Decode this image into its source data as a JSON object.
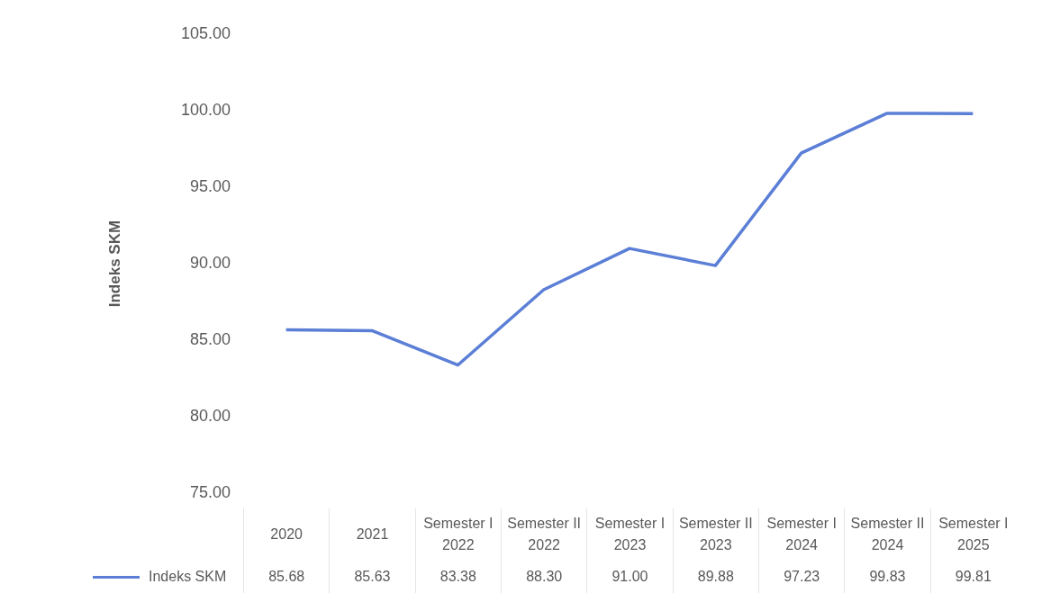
{
  "chart_data": {
    "type": "line",
    "ylabel": "Indeks SKM",
    "categories": [
      "2020",
      "2021",
      "Semester I 2022",
      "Semester II 2022",
      "Semester I 2023",
      "Semester II 2023",
      "Semester I 2024",
      "Semester II 2024",
      "Semester I 2025"
    ],
    "series": [
      {
        "name": "Indeks SKM",
        "color": "#5b7fd6",
        "values": [
          85.68,
          85.63,
          83.38,
          88.3,
          91.0,
          89.88,
          97.23,
          99.83,
          99.81
        ],
        "value_labels": [
          "85.68",
          "85.63",
          "83.38",
          "88.30",
          "91.00",
          "89.88",
          "97.23",
          "99.83",
          "99.81"
        ]
      }
    ],
    "ylim": [
      75,
      105
    ],
    "yticks": [
      {
        "value": 75,
        "label": "75.00"
      },
      {
        "value": 80,
        "label": "80.00"
      },
      {
        "value": 85,
        "label": "85.00"
      },
      {
        "value": 90,
        "label": "90.00"
      },
      {
        "value": 95,
        "label": "95.00"
      },
      {
        "value": 100,
        "label": "100.00"
      },
      {
        "value": 105,
        "label": "105.00"
      }
    ],
    "grid": false,
    "legend": "bottom",
    "marker": "none",
    "line_style": "solid"
  }
}
